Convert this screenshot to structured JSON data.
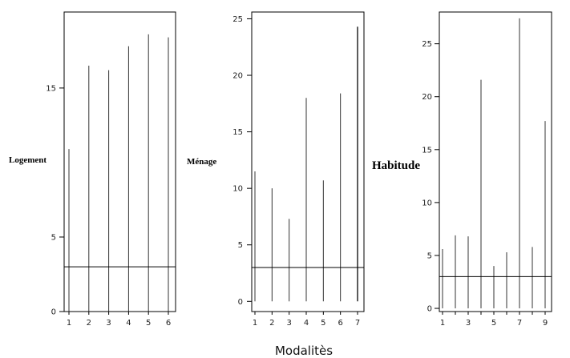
{
  "chart_data": {
    "type": "bar",
    "xlabel": "Modalitès",
    "panels": [
      {
        "label": "Logement",
        "categories": [
          1,
          2,
          3,
          4,
          5,
          6
        ],
        "values": [
          10.9,
          16.5,
          16.2,
          17.8,
          18.6,
          18.4
        ],
        "reference": 3,
        "ylim": [
          0,
          20.1
        ],
        "yticks": [
          0,
          5,
          15
        ]
      },
      {
        "label": "Ménage",
        "categories": [
          1,
          2,
          3,
          4,
          5,
          6,
          7
        ],
        "values": [
          11.5,
          10.0,
          7.3,
          18.0,
          10.7,
          18.4,
          24.3
        ],
        "reference": 3,
        "ylim": [
          -0.9,
          25.6
        ],
        "yticks": [
          0,
          5,
          10,
          15,
          20,
          25
        ]
      },
      {
        "label": "Habitude",
        "categories": [
          1,
          2,
          3,
          4,
          5,
          6,
          7,
          8,
          9
        ],
        "values": [
          5.6,
          6.9,
          6.8,
          21.6,
          4.0,
          5.3,
          27.4,
          5.8,
          17.7
        ],
        "reference": 3,
        "ylim": [
          -0.3,
          28.0
        ],
        "yticks": [
          0,
          5,
          10,
          15,
          20,
          25
        ],
        "xticks": [
          1,
          3,
          5,
          7,
          9
        ]
      }
    ]
  }
}
